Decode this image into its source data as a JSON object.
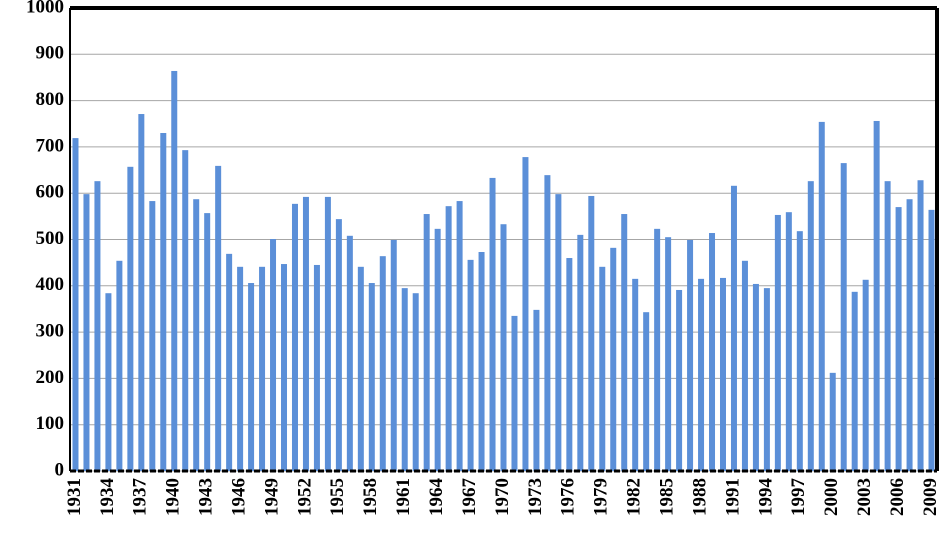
{
  "chart_data": {
    "type": "bar",
    "categories": [
      "1931",
      null,
      null,
      "1934",
      null,
      null,
      "1937",
      null,
      null,
      "1940",
      null,
      null,
      "1943",
      null,
      null,
      "1946",
      null,
      null,
      "1949",
      null,
      null,
      "1952",
      null,
      null,
      "1955",
      null,
      null,
      "1958",
      null,
      null,
      "1961",
      null,
      null,
      "1964",
      null,
      null,
      "1967",
      null,
      null,
      "1970",
      null,
      null,
      "1973",
      null,
      null,
      "1976",
      null,
      null,
      "1979",
      null,
      null,
      "1982",
      null,
      null,
      "1985",
      null,
      null,
      "1988",
      null,
      null,
      "1991",
      null,
      null,
      "1994",
      null,
      null,
      "1997",
      null,
      null,
      "2000",
      null,
      null,
      "2003",
      null,
      null,
      "2006",
      null,
      null,
      "2009"
    ],
    "values": [
      719,
      598,
      626,
      384,
      454,
      657,
      771,
      583,
      730,
      864,
      693,
      587,
      557,
      659,
      469,
      441,
      406,
      441,
      501,
      447,
      577,
      592,
      445,
      592,
      544,
      508,
      441,
      406,
      464,
      499,
      395,
      384,
      555,
      523,
      572,
      583,
      456,
      473,
      633,
      533,
      335,
      678,
      348,
      639,
      598,
      460,
      510,
      594,
      441,
      482,
      555,
      415,
      343,
      523,
      505,
      391,
      499,
      415,
      514,
      417,
      616,
      454,
      404,
      395,
      553,
      559,
      518,
      626,
      754,
      212,
      665,
      387,
      413,
      756,
      626,
      570,
      587,
      628,
      564
    ],
    "color": "#5b8fd8",
    "ylim": [
      0,
      1000
    ],
    "yticks": [
      0,
      100,
      200,
      300,
      400,
      500,
      600,
      700,
      800,
      900,
      1000
    ],
    "grid": true
  }
}
